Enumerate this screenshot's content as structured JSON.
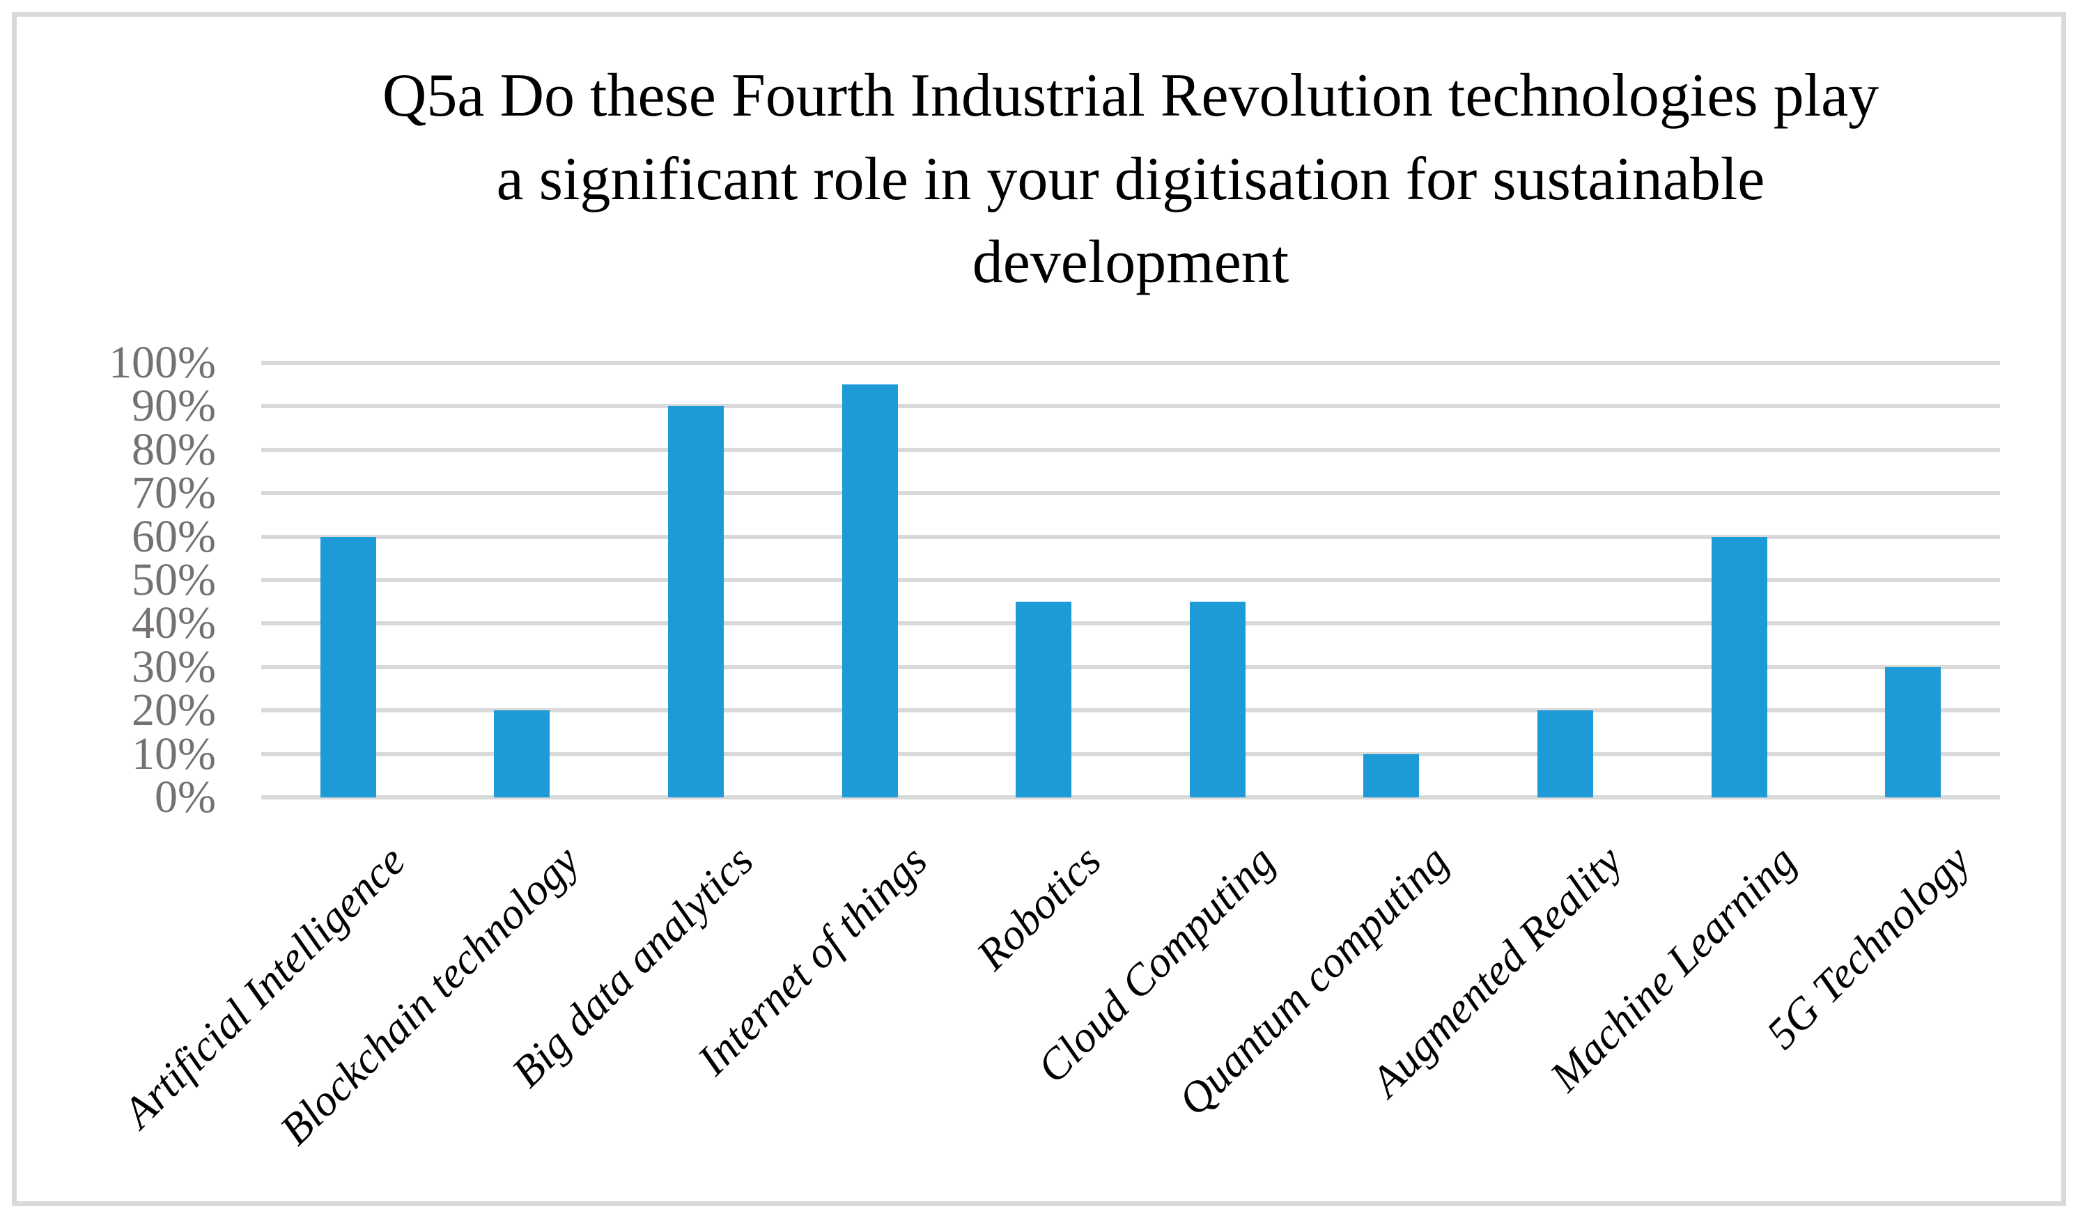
{
  "figure": {
    "title_lines": [
      "Q5a Do these Fourth Industrial Revolution technologies play",
      "a significant role in your digitisation for sustainable",
      "development"
    ]
  },
  "chart_data": {
    "type": "bar",
    "title": "Q5a Do these Fourth Industrial Revolution technologies play a significant role in your digitisation for sustainable development",
    "categories": [
      "Artificial Intelligence",
      "Blockchain technology",
      "Big data analytics",
      "Internet of things",
      "Robotics",
      "Cloud Computing",
      "Quantum computing",
      "Augmented Reality",
      "Machine Learning",
      "5G Technology"
    ],
    "values": [
      60,
      20,
      90,
      95,
      45,
      45,
      10,
      20,
      60,
      30
    ],
    "unit": "%",
    "xlabel": "",
    "ylabel": "",
    "ylim": [
      0,
      100
    ],
    "ytick_step": 10,
    "ytick_labels": [
      "100%",
      "90%",
      "80%",
      "70%",
      "60%",
      "50%",
      "40%",
      "30%",
      "20%",
      "10%",
      "0%"
    ],
    "grid": "horizontal",
    "legend": "none",
    "bar_color": "#1E9AD7",
    "gridline_color": "#D9D9D9",
    "axis_label_color": "#767171",
    "category_label_color": "#000000",
    "frame_color": "#D9D9D9",
    "title_color": "#000000"
  }
}
